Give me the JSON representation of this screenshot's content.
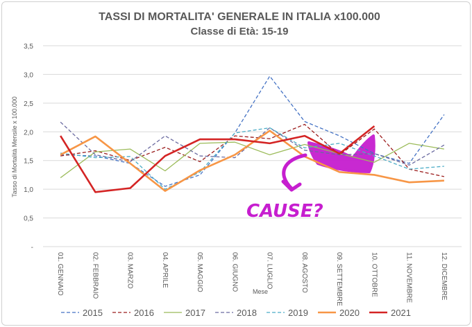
{
  "chart_data": {
    "type": "line",
    "title": "TASSI DI MORTALITA' GENERALE IN ITALIA x100.000",
    "subtitle": "Classe di Età: 15-19",
    "xlabel": "Mese",
    "ylabel": "Tasso di Mortalità Mensile x 100.000",
    "categories": [
      "01. GENNAIO",
      "02. FEBBRAIO",
      "03. MARZO",
      "04. APRILE",
      "05. MAGGIO",
      "06. GIUGNO",
      "07. LUGLIO",
      "08. AGOSTO",
      "09. SETTEMBRE",
      "10. OTTOBRE",
      "11. NOVEMBRE",
      "12. DICEMBRE"
    ],
    "yticks": [
      "-",
      "0,5",
      "1,0",
      "1,5",
      "2,0",
      "2,5",
      "3,0",
      "3,5"
    ],
    "ylim": [
      0,
      3.5
    ],
    "grid": true,
    "legend_position": "bottom",
    "series": [
      {
        "name": "2015",
        "color": "#4472c4",
        "style": "dashed",
        "values": [
          1.6,
          1.58,
          1.45,
          1.05,
          1.25,
          1.98,
          2.97,
          2.18,
          1.93,
          1.62,
          1.45,
          2.3
        ]
      },
      {
        "name": "2016",
        "color": "#9b1c1c",
        "style": "dashed",
        "values": [
          1.58,
          1.67,
          1.5,
          1.73,
          1.48,
          1.93,
          1.88,
          2.13,
          1.6,
          2.05,
          1.35,
          1.22
        ]
      },
      {
        "name": "2017",
        "color": "#9bbb59",
        "style": "solid",
        "values": [
          1.2,
          1.65,
          1.7,
          1.32,
          1.8,
          1.82,
          1.6,
          1.78,
          1.62,
          1.47,
          1.8,
          1.7
        ]
      },
      {
        "name": "2018",
        "color": "#6a6aa0",
        "style": "dashed",
        "values": [
          2.17,
          1.6,
          1.48,
          1.93,
          1.58,
          1.55,
          2.07,
          1.68,
          1.6,
          1.62,
          1.42,
          1.77
        ]
      },
      {
        "name": "2019",
        "color": "#4bacc6",
        "style": "dashed",
        "values": [
          1.63,
          1.55,
          1.57,
          1.0,
          1.3,
          1.98,
          2.07,
          1.72,
          1.8,
          1.58,
          1.35,
          1.4
        ]
      },
      {
        "name": "2020",
        "color": "#f79646",
        "style": "solid",
        "values": [
          1.6,
          1.92,
          1.45,
          0.97,
          1.33,
          1.6,
          2.02,
          1.57,
          1.3,
          1.25,
          1.12,
          1.15
        ]
      },
      {
        "name": "2021",
        "color": "#d42424",
        "style": "solid",
        "values": [
          1.93,
          0.95,
          1.02,
          1.58,
          1.87,
          1.87,
          1.8,
          1.93,
          1.62,
          2.1,
          null,
          null
        ]
      }
    ],
    "annotation": {
      "text": "CAUSE?",
      "color": "#c61ecf"
    }
  }
}
